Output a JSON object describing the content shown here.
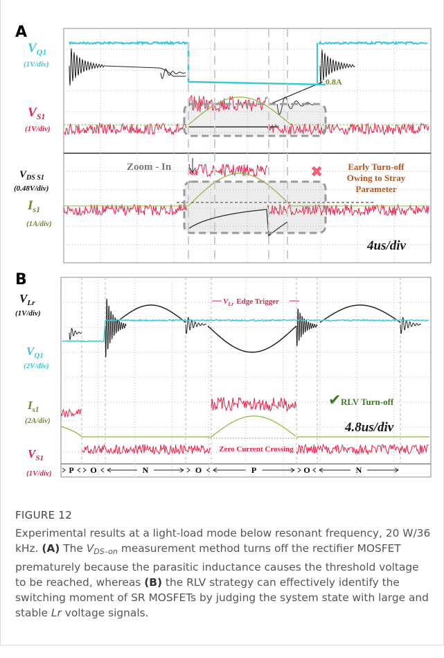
{
  "panel_a": {
    "label": "A",
    "channels": [
      {
        "main": "V",
        "sub": "Q1",
        "scale": "(1V/div)"
      },
      {
        "main": "V",
        "sub": "S1",
        "scale": "(1V/div)"
      },
      {
        "main": "V",
        "sub": "DS S1",
        "scale": "(0.48V/div)"
      },
      {
        "main": "I",
        "sub": "s1",
        "scale": "(1A/div)"
      }
    ],
    "annotations": {
      "peak": "0.8A",
      "zoom": "Zoom - In",
      "early_line1": "Early Turn-off",
      "early_line2": "Owing to Stray",
      "early_line3": "Parameter",
      "timebase": "4us/div"
    }
  },
  "panel_b": {
    "label": "B",
    "channels": [
      {
        "main": "V",
        "sub": "Lr",
        "scale": "(1V/div)"
      },
      {
        "main": "V",
        "sub": "Q1",
        "scale": "(2V/div)"
      },
      {
        "main": "I",
        "sub": "s1",
        "scale": "(2A/div)"
      },
      {
        "main": "V",
        "sub": "S1",
        "scale": "(1V/div)"
      }
    ],
    "annotations": {
      "trigger_main": "V",
      "trigger_sub": "Lr",
      "trigger_text": "Edge Trigger",
      "rlv": "RLV Turn-off",
      "timebase": "4.8us/div",
      "zero": "Zero Current Crossing"
    },
    "modes": [
      "P",
      "O",
      "N",
      "O",
      "P",
      "O",
      "N"
    ]
  },
  "caption": {
    "title": "FIGURE 12",
    "runs": [
      {
        "text": "Experimental results at a light-load mode below resonant frequency, 20 W/36 kHz. ",
        "style": "normal"
      },
      {
        "text": "(A)",
        "style": "bold"
      },
      {
        "text": " The ",
        "style": "normal"
      },
      {
        "text": "V",
        "style": "italic"
      },
      {
        "text": "DS–on",
        "style": "sub"
      },
      {
        "text": " measurement method turns off the rectifier MOSFET prematurely because the parasitic inductance causes the threshold voltage to be reached, whereas ",
        "style": "normal"
      },
      {
        "text": "(B)",
        "style": "bold"
      },
      {
        "text": " the RLV strategy can effectively identify the switching moment of SR MOSFETs by judging the system state with large and stable ",
        "style": "normal"
      },
      {
        "text": "Lr",
        "style": "italic"
      },
      {
        "text": " voltage signals.",
        "style": "normal"
      }
    ]
  }
}
